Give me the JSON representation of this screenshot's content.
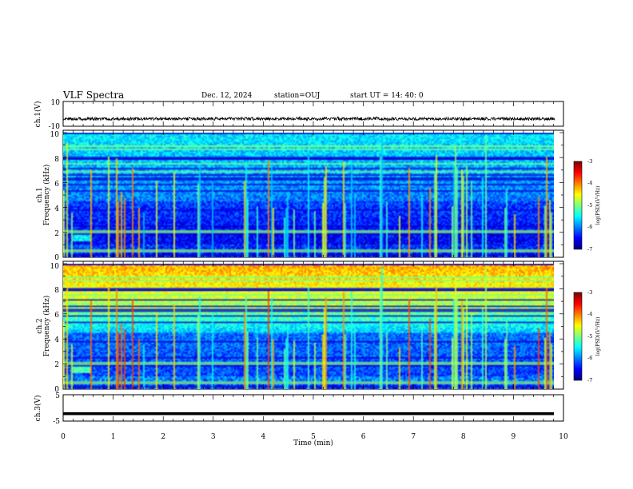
{
  "header": {
    "title": "VLF Spectra",
    "date": "Dec. 12, 2024",
    "station": "station=OUJ",
    "start": "start  UT =  14: 40: 0"
  },
  "chart_data": [
    {
      "type": "line",
      "name": "ch1-voltage",
      "ylabel": "ch.1(V)",
      "ylim": [
        -10,
        10
      ],
      "yticks": [
        "10",
        "-10"
      ],
      "xlim": [
        0,
        10
      ],
      "description_level": -4,
      "amplitude_noise": 1.2
    },
    {
      "type": "heatmap",
      "name": "ch1-spectrogram",
      "ylabel_line1": "ch.1",
      "ylabel_line2": "Frequency (kHz)",
      "ylim": [
        0,
        10
      ],
      "yticks": [
        "0",
        "2",
        "4",
        "6",
        "8",
        "10"
      ],
      "xlim": [
        0,
        9.83
      ],
      "colorbar": {
        "label": "log(PSD)(V²/Hz)",
        "range": [
          -7,
          -3
        ],
        "ticks": [
          "-3",
          "-4",
          "-5",
          "-6",
          "-7"
        ]
      },
      "intensity_profile": "low"
    },
    {
      "type": "heatmap",
      "name": "ch2-spectrogram",
      "ylabel_line1": "ch.2",
      "ylabel_line2": "Frequency (kHz)",
      "ylim": [
        0,
        10
      ],
      "yticks": [
        "0",
        "2",
        "4",
        "6",
        "8",
        "10"
      ],
      "xlim": [
        0,
        9.83
      ],
      "colorbar": {
        "label": "log(PSD)(V²/Hz)",
        "range": [
          -7,
          -3
        ],
        "ticks": [
          "-3",
          "-4",
          "-5",
          "-6",
          "-7"
        ]
      },
      "intensity_profile": "high"
    },
    {
      "type": "line",
      "name": "ch3-voltage",
      "ylabel": "ch.3(V)",
      "ylim": [
        -5,
        5
      ],
      "yticks": [
        "5",
        "-5"
      ],
      "xlim": [
        0,
        10
      ],
      "level": -2.2
    }
  ],
  "xaxis": {
    "label": "Time (min)",
    "ticks": [
      "0",
      "1",
      "2",
      "3",
      "4",
      "5",
      "6",
      "7",
      "8",
      "9",
      "10"
    ]
  }
}
